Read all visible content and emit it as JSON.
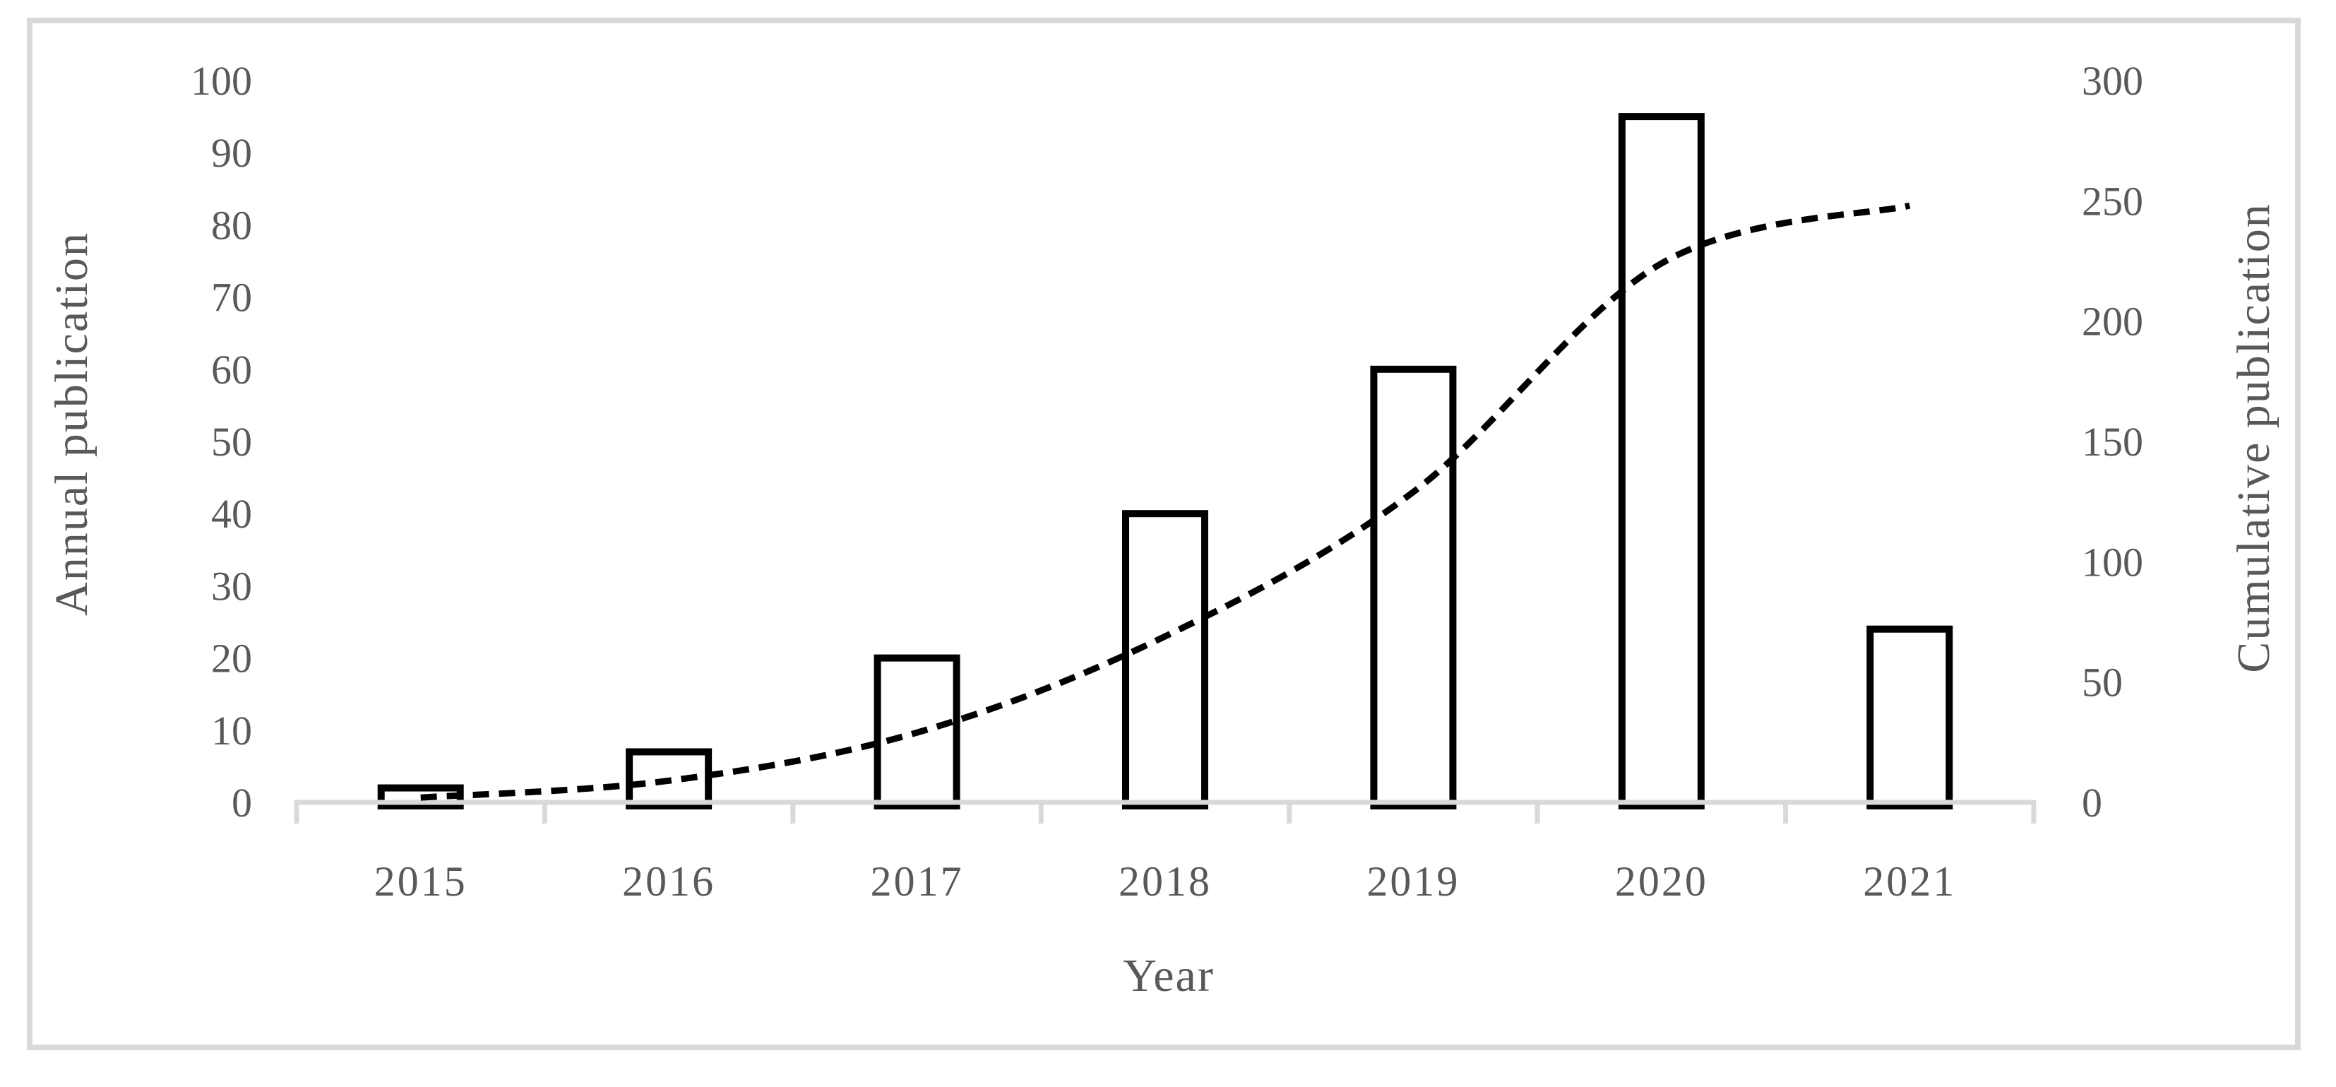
{
  "chart_data": {
    "type": "bar+line",
    "title": "",
    "xlabel": "Year",
    "ylabel_left": "Annual publication",
    "ylabel_right": "Cumulative publication",
    "categories": [
      "2015",
      "2016",
      "2017",
      "2018",
      "2019",
      "2020",
      "2021"
    ],
    "series": [
      {
        "name": "Annual publication",
        "type": "bar",
        "axis": "left",
        "values": [
          2,
          7,
          20,
          40,
          60,
          95,
          24
        ]
      },
      {
        "name": "Cumulative publication",
        "type": "line",
        "axis": "right",
        "dashed": true,
        "values": [
          2,
          9,
          29,
          69,
          129,
          224,
          248
        ]
      }
    ],
    "axes": {
      "left": {
        "min": 0,
        "max": 100,
        "ticks": [
          0,
          10,
          20,
          30,
          40,
          50,
          60,
          70,
          80,
          90,
          100
        ]
      },
      "right": {
        "min": 0,
        "max": 300,
        "ticks": [
          0,
          50,
          100,
          150,
          200,
          250,
          300
        ]
      }
    },
    "legend": "none",
    "grid": "off",
    "colors": {
      "bar_fill": "#ffffff",
      "bar_stroke": "#000000",
      "line_stroke": "#000000",
      "axis_line": "#d9d9d9",
      "text": "#595959",
      "frame": "#d9d9d9"
    }
  }
}
